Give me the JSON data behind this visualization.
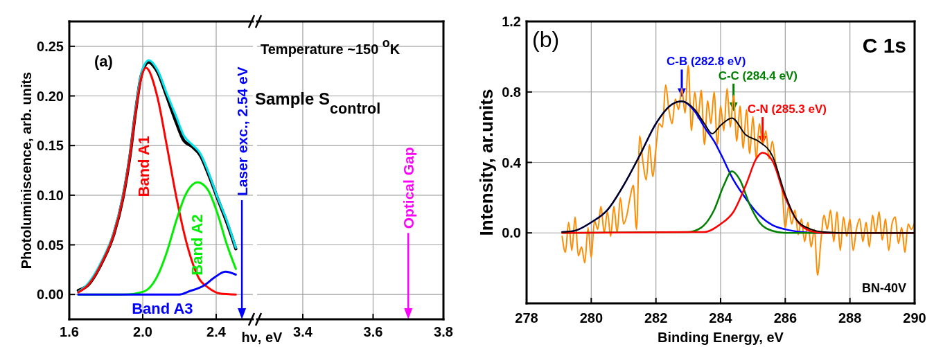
{
  "chart_data": [
    {
      "type": "line",
      "xlabel": "hν, eV",
      "ylabel": "Photoluminiscence, arb. units",
      "xlim": [
        1.6,
        2.6
      ],
      "ylim": [
        -0.025,
        0.275
      ],
      "xticks": [
        1.6,
        {
          "value": 2,
          "label": "2.0"
        },
        2.4
      ],
      "yticks": [
        {
          "value": 0,
          "label": "0.00"
        },
        0.05,
        {
          "value": 0.1,
          "label": "0.10"
        },
        0.15,
        {
          "value": 0.2,
          "label": "0.20"
        },
        0.25
      ],
      "grid": true,
      "series": [
        {
          "color": "#000000",
          "x": [
            1.649,
            1.705,
            1.78,
            1.843,
            1.893,
            1.931,
            1.961,
            1.994,
            2.033,
            2.06,
            2.081,
            2.13,
            2.183,
            2.224,
            2.269,
            2.314,
            2.356,
            2.407,
            2.457,
            2.507
          ],
          "values": [
            0.004,
            0.01,
            0.033,
            0.061,
            0.098,
            0.14,
            0.184,
            0.222,
            0.234,
            0.23,
            0.224,
            0.2,
            0.173,
            0.155,
            0.149,
            0.14,
            0.122,
            0.097,
            0.073,
            0.046
          ]
        },
        {
          "color": "#00e5ee",
          "x": [
            1.649,
            1.705,
            1.78,
            1.843,
            1.893,
            1.931,
            1.961,
            1.994,
            2.033,
            2.081,
            2.13,
            2.183,
            2.224,
            2.269,
            2.314,
            2.356,
            2.407,
            2.457,
            2.507
          ],
          "values": [
            0.0026,
            0.0117,
            0.035,
            0.063,
            0.1,
            0.142,
            0.186,
            0.224,
            0.236,
            0.226,
            0.203,
            0.179,
            0.16,
            0.151,
            0.142,
            0.124,
            0.098,
            0.075,
            0.047
          ]
        },
        {
          "name": "Band A1",
          "color": "#ff0000",
          "x": [
            1.649,
            1.705,
            1.78,
            1.843,
            1.893,
            1.931,
            1.961,
            1.994,
            2.017,
            2.081,
            2.13,
            2.183,
            2.243,
            2.307,
            2.356,
            2.42,
            2.507
          ],
          "values": [
            0.002,
            0.01,
            0.033,
            0.061,
            0.098,
            0.14,
            0.183,
            0.22,
            0.2285,
            0.198,
            0.151,
            0.098,
            0.049,
            0.016,
            0.007,
            0.001,
            0
          ]
        },
        {
          "name": "Band A2",
          "color": "#00ee00",
          "x": [
            1.649,
            1.9,
            2.006,
            2.081,
            2.13,
            2.183,
            2.232,
            2.3,
            2.356,
            2.407,
            2.457,
            2.507
          ],
          "values": [
            0,
            0,
            0.003,
            0.019,
            0.042,
            0.0746,
            0.1,
            0.113,
            0.105,
            0.0816,
            0.051,
            0.0257
          ]
        },
        {
          "name": "Band A3",
          "color": "#0000ff",
          "x": [
            1.649,
            2.2,
            2.25,
            2.333,
            2.39,
            2.45,
            2.507
          ],
          "values": [
            0,
            0,
            0.003,
            0.009,
            0.017,
            0.0229,
            0.02
          ]
        }
      ],
      "ref_lines": [
        {
          "axis": "x",
          "value": 2.54,
          "label": "Laser exc., 2.54 eV",
          "color": "#0000ff"
        }
      ],
      "annotations": [
        "(a)"
      ]
    },
    {
      "type": "line",
      "xlim": [
        3.27,
        3.8
      ],
      "ylim": [
        -0.025,
        0.275
      ],
      "xticks": [
        3.4,
        3.6,
        3.8
      ],
      "yticks": [
        0,
        0.05,
        0.1,
        0.15,
        0.2,
        0.25
      ],
      "tick_labels": "x",
      "grid": true,
      "ref_lines": [
        {
          "axis": "x",
          "value": 3.7,
          "label": "Optical Gap",
          "color": "#ff00ff"
        }
      ],
      "annotations": [
        "Temperature ~150 $^{o}$K",
        "Sample S$_{control}$"
      ]
    },
    {
      "type": "line",
      "xlabel": "Binding Energy, eV",
      "ylabel": "Intensity, ar.units",
      "xlim": [
        278,
        290
      ],
      "ylim": [
        -0.4,
        1.2
      ],
      "xticks": [
        278,
        280,
        282,
        284,
        286,
        288,
        290
      ],
      "yticks": [
        {
          "value": 0,
          "label": "0.0"
        },
        0.4,
        0.8,
        1.2
      ],
      "grid": true,
      "series": [
        {
          "color": "#ff8c00",
          "x": [
            279.1,
            279.2,
            279.3,
            279.4,
            279.5,
            279.6,
            279.7,
            279.8,
            279.9,
            280.0,
            280.1,
            280.2,
            280.3,
            280.4,
            280.5,
            280.6,
            280.7,
            280.8,
            280.9,
            281.0,
            281.1,
            281.2,
            281.3,
            281.4,
            281.5,
            281.6,
            281.7,
            281.8,
            281.9,
            282.0,
            282.1,
            282.2,
            282.3,
            282.4,
            282.5,
            282.6,
            282.7,
            282.8,
            282.9,
            283.0,
            283.1,
            283.2,
            283.3,
            283.4,
            283.5,
            283.6,
            283.7,
            283.8,
            283.9,
            284.0,
            284.1,
            284.2,
            284.3,
            284.4,
            284.5,
            284.6,
            284.7,
            284.8,
            284.9,
            285.0,
            285.1,
            285.2,
            285.3,
            285.4,
            285.5,
            285.6,
            285.7,
            285.8,
            285.9,
            286.0,
            286.1,
            286.2,
            286.3,
            286.4,
            286.5,
            286.6,
            286.7,
            286.8,
            286.9,
            287.0,
            287.1,
            287.2,
            287.3,
            287.4,
            287.5,
            287.6,
            287.7,
            287.8,
            287.9,
            288.0,
            288.1,
            288.2,
            288.3,
            288.4,
            288.5,
            288.6,
            288.7,
            288.8,
            288.9,
            289.0,
            289.1,
            289.2,
            289.3,
            289.4,
            289.5,
            289.6,
            289.7,
            289.8,
            289.9,
            290.0
          ],
          "values": [
            -0.02,
            -0.11,
            0.06,
            -0.1,
            0.09,
            -0.13,
            -0.08,
            -0.17,
            0.03,
            -0.14,
            0.07,
            0.02,
            0.15,
            0.0,
            0.12,
            -0.02,
            0.15,
            0.0,
            0.2,
            0.05,
            0.1,
            0.2,
            0.27,
            0.02,
            0.55,
            0.4,
            0.3,
            0.5,
            0.32,
            0.48,
            0.62,
            0.6,
            0.84,
            0.7,
            0.62,
            0.76,
            0.7,
            0.82,
            0.68,
            0.95,
            0.58,
            0.8,
            0.65,
            0.81,
            0.5,
            0.75,
            0.62,
            0.8,
            0.5,
            0.72,
            0.58,
            0.82,
            0.6,
            0.78,
            0.52,
            0.72,
            0.48,
            0.7,
            0.45,
            0.66,
            0.42,
            0.62,
            0.5,
            0.58,
            0.42,
            0.52,
            0.4,
            0.32,
            0.25,
            0.03,
            0.15,
            0.05,
            0.13,
            -0.01,
            0.08,
            -0.05,
            0.06,
            -0.08,
            0.02,
            -0.24,
            -0.05,
            0.1,
            0.02,
            0.13,
            -0.05,
            0.12,
            -0.1,
            0.09,
            -0.02,
            0.08,
            -0.1,
            0.02,
            0.08,
            -0.05,
            0.06,
            -0.08,
            0.1,
            0.0,
            0.12,
            -0.04,
            0.08,
            -0.1,
            0.05,
            0.09,
            -0.06,
            0.03,
            -0.11,
            0.05,
            0.02,
            0.06
          ]
        },
        {
          "color": "#0000ff",
          "x": [
            279.1,
            279.5,
            280,
            280.5,
            281,
            281.5,
            282,
            282.5,
            282.8,
            283.2,
            283.5,
            283.8,
            284,
            284.4,
            284.8,
            285.2,
            285.6,
            286,
            286.5,
            287,
            290
          ],
          "values": [
            0.005,
            0.013,
            0.06,
            0.13,
            0.27,
            0.44,
            0.62,
            0.73,
            0.747,
            0.69,
            0.6,
            0.52,
            0.45,
            0.3,
            0.19,
            0.1,
            0.045,
            0.02,
            0.005,
            0,
            0
          ]
        },
        {
          "color": "#008000",
          "x": [
            279.1,
            283,
            283.4,
            283.8,
            284.1,
            284.35,
            284.6,
            284.9,
            285.2,
            285.6,
            286,
            290
          ],
          "values": [
            0,
            0.005,
            0.03,
            0.13,
            0.27,
            0.35,
            0.3,
            0.16,
            0.06,
            0.012,
            0,
            0
          ]
        },
        {
          "color": "#ff0000",
          "x": [
            279.1,
            283.5,
            284,
            284.4,
            284.8,
            285.1,
            285.3,
            285.6,
            286,
            286.4,
            286.8,
            287.2,
            290
          ],
          "values": [
            0,
            0.005,
            0.05,
            0.12,
            0.28,
            0.42,
            0.455,
            0.41,
            0.2,
            0.06,
            0.01,
            0,
            0
          ]
        },
        {
          "color": "#000000",
          "x": [
            279.1,
            279.5,
            280,
            280.5,
            281,
            281.5,
            282,
            282.5,
            282.8,
            283.2,
            283.5,
            283.74,
            284,
            284.35,
            284.78,
            285.2,
            285.6,
            286,
            286.36,
            286.8,
            287.2,
            288,
            290
          ],
          "values": [
            0.005,
            0.013,
            0.06,
            0.13,
            0.27,
            0.44,
            0.62,
            0.73,
            0.747,
            0.7,
            0.62,
            0.563,
            0.61,
            0.652,
            0.556,
            0.517,
            0.438,
            0.217,
            0.072,
            0.02,
            0.005,
            0,
            0
          ]
        }
      ],
      "annotations": [
        "(b)",
        "C 1s",
        "BN-40V",
        {
          "text": "C-B (282.8 eV)",
          "x": 282.8,
          "y": 0.77
        },
        {
          "text": "C-C (284.4 eV)",
          "x": 284.4,
          "y": 0.69
        },
        {
          "text": "C-N (285.3 eV)",
          "x": 285.3,
          "y": 0.5
        }
      ]
    }
  ]
}
